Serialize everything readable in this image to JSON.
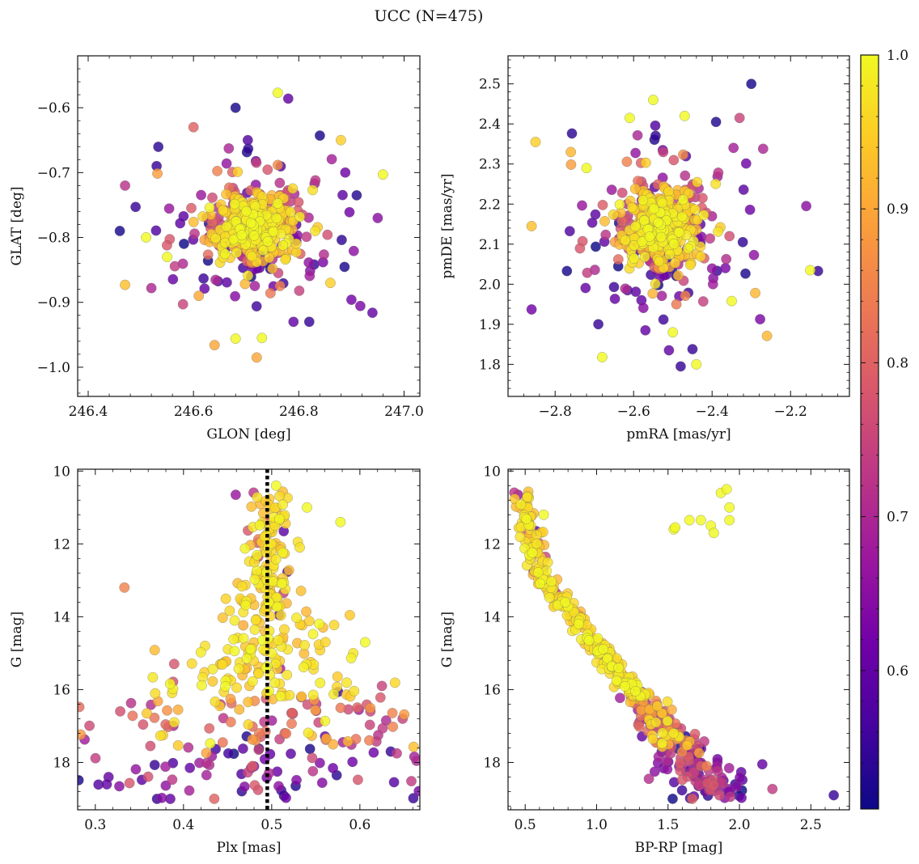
{
  "figure": {
    "title": "UCC (N=475)",
    "n_points": 475
  },
  "colormap": {
    "name": "plasma",
    "range": [
      0.51,
      1.0
    ],
    "ticks": [
      0.6,
      0.7,
      0.8,
      0.9,
      1.0
    ],
    "tick_labels": [
      "0.6",
      "0.7",
      "0.8",
      "0.9",
      "1.0"
    ],
    "stops": [
      "#0d0887",
      "#46039f",
      "#7201a8",
      "#9c179e",
      "#bd3786",
      "#d8576b",
      "#ed7953",
      "#fb9f3a",
      "#fdca26",
      "#f0f921"
    ]
  },
  "marker": {
    "edge_color": "#666666",
    "alpha": 0.82
  },
  "chart_data": [
    {
      "id": "position",
      "type": "scatter",
      "xlabel": "GLON [deg]",
      "ylabel": "GLAT [deg]",
      "xlim": [
        246.38,
        247.03
      ],
      "ylim": [
        -1.045,
        -0.52
      ],
      "xticks": [
        246.4,
        246.6,
        246.8,
        247.0
      ],
      "xtick_labels": [
        "246.4",
        "246.6",
        "246.8",
        "247.0"
      ],
      "yticks": [
        -1.0,
        -0.9,
        -0.8,
        -0.7,
        -0.6
      ],
      "ytick_labels": [
        "−1.0",
        "−0.9",
        "−0.8",
        "−0.7",
        "−0.6"
      ],
      "cluster": {
        "center": [
          246.715,
          -0.78
        ],
        "spread": [
          0.06,
          0.045
        ]
      },
      "outliers": [
        [
          246.46,
          -0.79,
          0.52
        ],
        [
          246.47,
          -0.873,
          0.93
        ],
        [
          246.52,
          -0.878,
          0.7
        ],
        [
          246.53,
          -0.69,
          0.55
        ],
        [
          246.6,
          -0.63,
          0.8
        ],
        [
          246.68,
          -0.6,
          0.52
        ],
        [
          246.76,
          -0.577,
          1.0
        ],
        [
          246.78,
          -0.586,
          0.6
        ],
        [
          246.84,
          -0.643,
          0.52
        ],
        [
          246.86,
          -0.87,
          0.95
        ],
        [
          246.91,
          -0.735,
          0.53
        ],
        [
          246.94,
          -0.916,
          0.6
        ],
        [
          246.95,
          -0.77,
          0.65
        ],
        [
          246.96,
          -0.703,
          1.0
        ],
        [
          246.72,
          -0.985,
          0.9
        ],
        [
          246.64,
          -0.966,
          0.9
        ],
        [
          246.79,
          -0.93,
          0.6
        ],
        [
          246.82,
          -0.93,
          0.55
        ],
        [
          246.9,
          -0.896,
          0.62
        ],
        [
          246.58,
          -0.903,
          0.75
        ],
        [
          246.51,
          -0.8,
          1.0
        ],
        [
          246.47,
          -0.72,
          0.72
        ],
        [
          246.49,
          -0.753,
          0.55
        ],
        [
          246.88,
          -0.65,
          0.95
        ],
        [
          246.73,
          -0.955,
          1.0
        ],
        [
          246.68,
          -0.956,
          1.0
        ],
        [
          246.55,
          -0.83,
          1.0
        ],
        [
          246.61,
          -0.89,
          0.9
        ]
      ]
    },
    {
      "id": "proper-motion",
      "type": "scatter",
      "xlabel": "pmRA [mas/yr]",
      "ylabel": "pmDE [mas/yr]",
      "xlim": [
        -2.92,
        -2.05
      ],
      "ylim": [
        1.72,
        2.57
      ],
      "xticks": [
        -2.8,
        -2.6,
        -2.4,
        -2.2
      ],
      "xtick_labels": [
        "−2.8",
        "−2.6",
        "−2.4",
        "−2.2"
      ],
      "yticks": [
        1.8,
        1.9,
        2.0,
        2.1,
        2.2,
        2.3,
        2.4,
        2.5
      ],
      "ytick_labels": [
        "1.8",
        "1.9",
        "2.0",
        "2.1",
        "2.2",
        "2.3",
        "2.4",
        "2.5"
      ],
      "cluster": {
        "center": [
          -2.53,
          2.15
        ],
        "spread": [
          0.075,
          0.085
        ]
      },
      "outliers": [
        [
          -2.3,
          2.5,
          0.52
        ],
        [
          -2.55,
          2.46,
          1.0
        ],
        [
          -2.39,
          2.405,
          0.53
        ],
        [
          -2.33,
          2.415,
          0.75
        ],
        [
          -2.61,
          2.415,
          1.0
        ],
        [
          -2.85,
          2.355,
          0.95
        ],
        [
          -2.86,
          2.145,
          0.93
        ],
        [
          -2.77,
          2.033,
          0.52
        ],
        [
          -2.86,
          1.937,
          0.62
        ],
        [
          -2.69,
          1.9,
          0.55
        ],
        [
          -2.68,
          1.818,
          1.0
        ],
        [
          -2.48,
          1.795,
          0.55
        ],
        [
          -2.44,
          1.8,
          1.0
        ],
        [
          -2.45,
          1.838,
          0.55
        ],
        [
          -2.51,
          1.835,
          0.6
        ],
        [
          -2.26,
          1.871,
          0.92
        ],
        [
          -2.16,
          2.195,
          0.65
        ],
        [
          -2.13,
          2.033,
          0.55
        ],
        [
          -2.15,
          2.035,
          1.0
        ],
        [
          -2.27,
          2.338,
          0.7
        ],
        [
          -2.47,
          2.42,
          1.0
        ],
        [
          -2.72,
          2.29,
          1.0
        ],
        [
          -2.57,
          1.885,
          0.6
        ],
        [
          -2.58,
          1.96,
          0.6
        ],
        [
          -2.5,
          1.88,
          1.0
        ],
        [
          -2.29,
          1.978,
          0.92
        ],
        [
          -2.35,
          1.958,
          1.0
        ],
        [
          -2.76,
          2.33,
          0.92
        ]
      ]
    },
    {
      "id": "plx-vs-g",
      "type": "scatter",
      "xlabel": "Plx [mas]",
      "ylabel": "G [mag]",
      "xlim": [
        0.28,
        0.668
      ],
      "ylim": [
        19.3,
        9.95
      ],
      "y_inverted": true,
      "xticks": [
        0.3,
        0.4,
        0.5,
        0.6
      ],
      "xtick_labels": [
        "0.3",
        "0.4",
        "0.5",
        "0.6"
      ],
      "yticks": [
        10,
        12,
        14,
        16,
        18
      ],
      "ytick_labels": [
        "10",
        "12",
        "14",
        "16",
        "18"
      ],
      "vline": {
        "x": 0.495,
        "style": "dotted",
        "color": "#000000"
      },
      "outliers": [
        [
          0.333,
          13.2,
          0.85
        ],
        [
          0.606,
          14.7,
          1.0
        ],
        [
          0.612,
          16.6,
          0.75
        ],
        [
          0.625,
          15.9,
          0.75
        ],
        [
          0.635,
          17.7,
          0.55
        ],
        [
          0.315,
          18.4,
          0.6
        ],
        [
          0.313,
          18.6,
          0.6
        ],
        [
          0.37,
          19.0,
          0.55
        ],
        [
          0.385,
          19.0,
          0.6
        ],
        [
          0.505,
          10.4,
          1.0
        ],
        [
          0.54,
          11.0,
          1.0
        ],
        [
          0.578,
          11.4,
          1.0
        ]
      ]
    },
    {
      "id": "cmd",
      "type": "scatter",
      "xlabel": "BP-RP [mag]",
      "ylabel": "G [mag]",
      "xlim": [
        0.38,
        2.77
      ],
      "ylim": [
        19.3,
        9.95
      ],
      "y_inverted": true,
      "xticks": [
        0.5,
        1.0,
        1.5,
        2.0,
        2.5
      ],
      "xtick_labels": [
        "0.5",
        "1.0",
        "1.5",
        "2.0",
        "2.5"
      ],
      "yticks": [
        10,
        12,
        14,
        16,
        18
      ],
      "ytick_labels": [
        "10",
        "12",
        "14",
        "16",
        "18"
      ],
      "outliers": [
        [
          1.54,
          11.6,
          1.0
        ],
        [
          1.55,
          11.55,
          1.0
        ],
        [
          1.65,
          11.35,
          1.0
        ],
        [
          1.73,
          11.35,
          1.0
        ],
        [
          1.8,
          11.5,
          1.0
        ],
        [
          1.82,
          11.7,
          1.0
        ],
        [
          1.87,
          10.6,
          1.0
        ],
        [
          1.91,
          10.5,
          1.0
        ],
        [
          1.93,
          11.0,
          1.0
        ],
        [
          1.93,
          11.35,
          1.0
        ],
        [
          0.63,
          11.2,
          1.0
        ],
        [
          1.97,
          18.6,
          0.55
        ],
        [
          2.16,
          18.05,
          0.6
        ],
        [
          2.66,
          18.9,
          0.55
        ]
      ]
    }
  ]
}
